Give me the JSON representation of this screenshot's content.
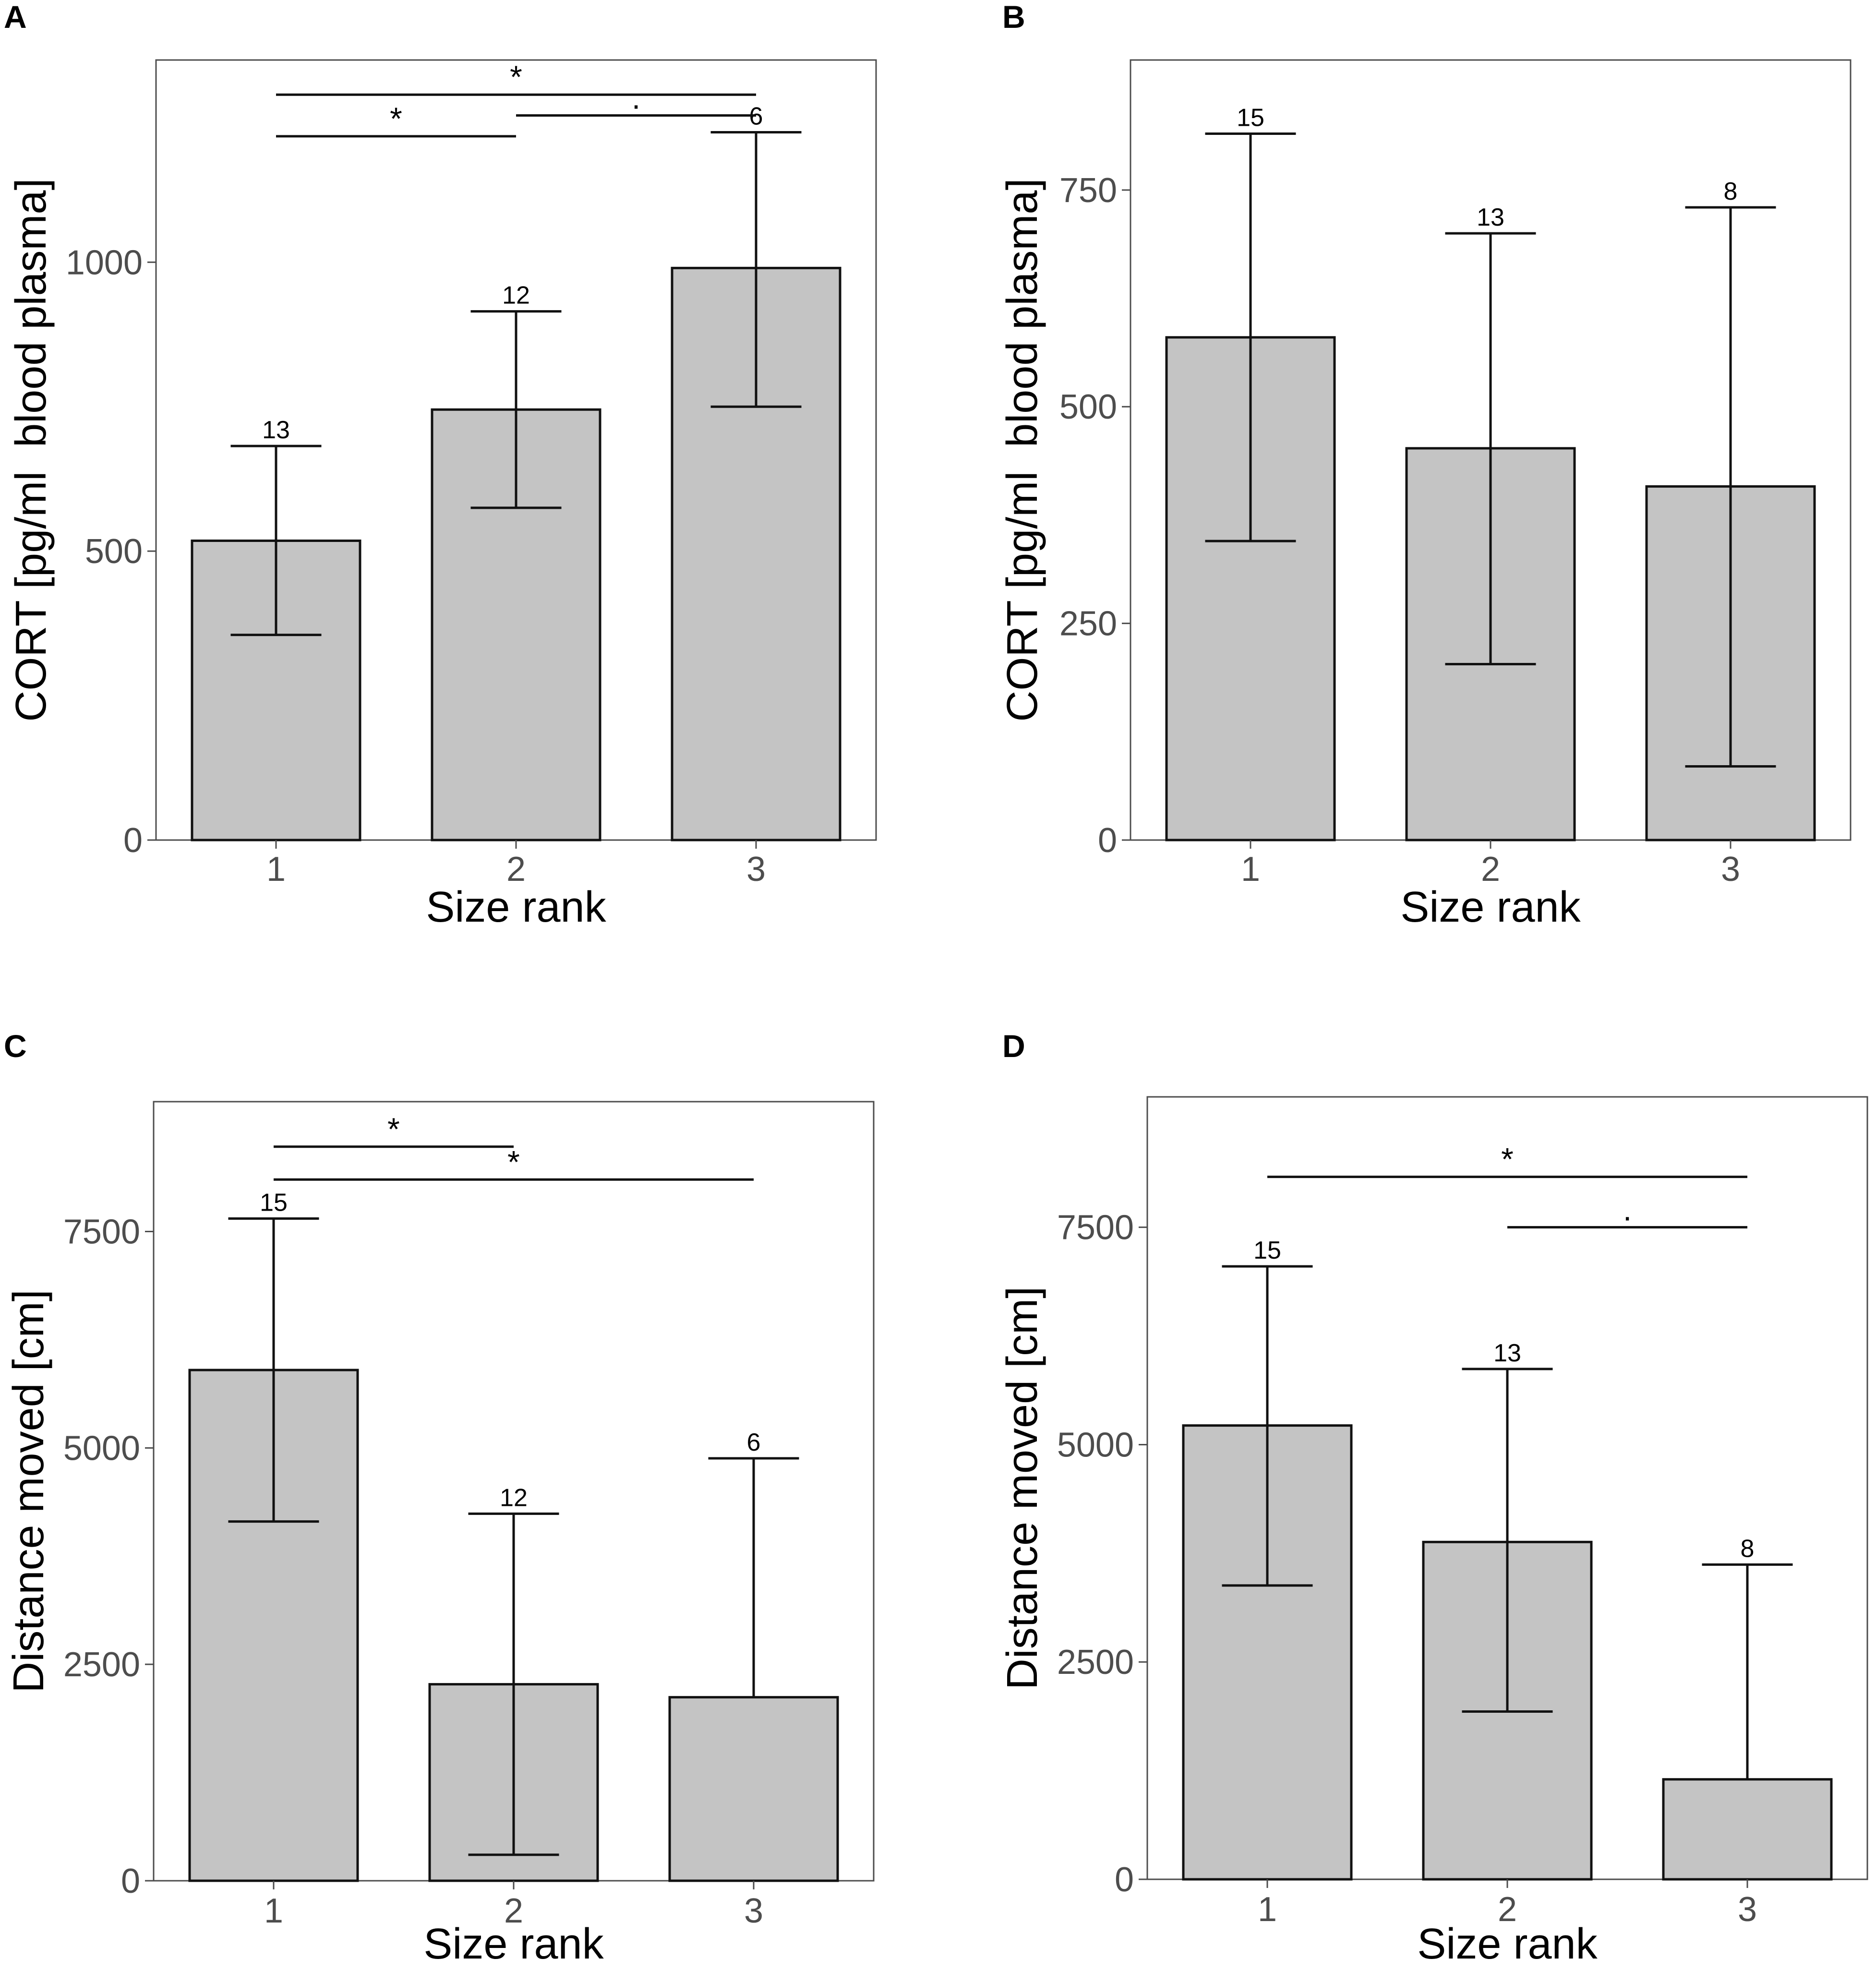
{
  "chart_data": [
    {
      "panel": "A",
      "type": "bar",
      "xlabel": "Size rank",
      "ylabel": "CORT [pg/ml  blood plasma]",
      "ylim": [
        0,
        1350
      ],
      "yticks": [
        0,
        500,
        1000
      ],
      "yticklabels": [
        "0",
        "500",
        "1000"
      ],
      "categories": [
        "1",
        "2",
        "3"
      ],
      "values": [
        518,
        745,
        990
      ],
      "err_low": [
        355,
        575,
        750
      ],
      "err_high": [
        682,
        915,
        1225
      ],
      "n_labels": [
        "13",
        "12",
        "6"
      ],
      "significance": [
        {
          "from": 1,
          "to": 3,
          "level": 1290,
          "label": "*"
        },
        {
          "from": 1,
          "to": 2,
          "level": 1218,
          "label": "*"
        },
        {
          "from": 2,
          "to": 3,
          "level": 1254,
          "label": "."
        }
      ]
    },
    {
      "panel": "B",
      "type": "bar",
      "xlabel": "Size rank",
      "ylabel": "CORT [pg/ml  blood plasma]",
      "ylim": [
        0,
        900
      ],
      "yticks": [
        0,
        250,
        500,
        750
      ],
      "yticklabels": [
        "0",
        "250",
        "500",
        "750"
      ],
      "categories": [
        "1",
        "2",
        "3"
      ],
      "values": [
        580,
        452,
        408
      ],
      "err_low": [
        345,
        203,
        85
      ],
      "err_high": [
        815,
        700,
        730
      ],
      "n_labels": [
        "15",
        "13",
        "8"
      ],
      "significance": []
    },
    {
      "panel": "C",
      "type": "bar",
      "xlabel": "Size rank",
      "ylabel": "Distance moved [cm]",
      "ylim": [
        0,
        9000
      ],
      "yticks": [
        0,
        2500,
        5000,
        7500
      ],
      "yticklabels": [
        "0",
        "2500",
        "5000",
        "7500"
      ],
      "categories": [
        "1",
        "2",
        "3"
      ],
      "values": [
        5900,
        2270,
        2120
      ],
      "err_low": [
        4150,
        300,
        2120
      ],
      "err_high": [
        7650,
        4240,
        4880
      ],
      "n_labels": [
        "15",
        "12",
        "6"
      ],
      "significance": [
        {
          "from": 1,
          "to": 2,
          "level": 8480,
          "label": "*"
        },
        {
          "from": 1,
          "to": 3,
          "level": 8100,
          "label": "*"
        }
      ]
    },
    {
      "panel": "D",
      "type": "bar",
      "xlabel": "Size rank",
      "ylabel": "Distance moved [cm]",
      "ylim": [
        0,
        9000
      ],
      "yticks": [
        0,
        2500,
        5000,
        7500
      ],
      "yticklabels": [
        "0",
        "2500",
        "5000",
        "7500"
      ],
      "categories": [
        "1",
        "2",
        "3"
      ],
      "values": [
        5220,
        3880,
        1150
      ],
      "err_low": [
        3380,
        1930,
        1150
      ],
      "err_high": [
        7050,
        5870,
        3620
      ],
      "n_labels": [
        "15",
        "13",
        "8"
      ],
      "significance": [
        {
          "from": 1,
          "to": 3,
          "level": 8080,
          "label": "*"
        },
        {
          "from": 2,
          "to": 3,
          "level": 7500,
          "label": "."
        }
      ]
    }
  ]
}
